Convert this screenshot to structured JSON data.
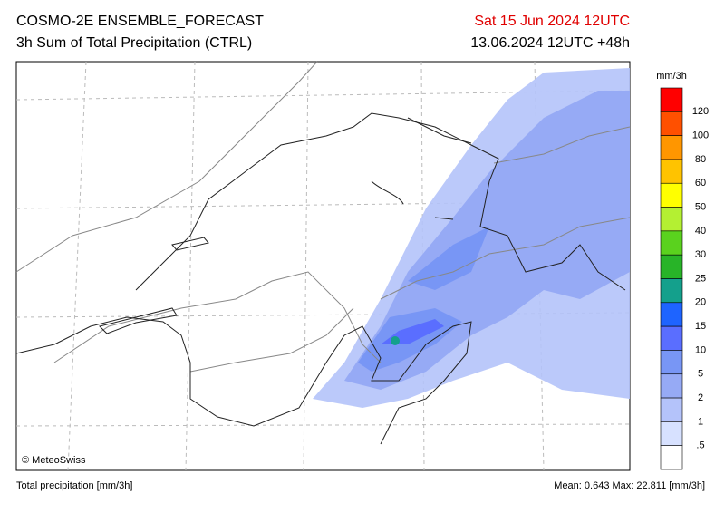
{
  "header": {
    "title": "COSMO-2E ENSEMBLE_FORECAST",
    "subtitle": "3h Sum of Total Precipitation (CTRL)",
    "valid_time": "Sat 15 Jun 2024 12UTC",
    "run_time": "13.06.2024 12UTC +48h"
  },
  "map": {
    "copyright": "© MeteoSwiss"
  },
  "colorbar": {
    "unit": "mm/3h",
    "colors": [
      "#ff0000",
      "#ff5000",
      "#ff9600",
      "#ffc300",
      "#ffff00",
      "#b4f032",
      "#5ad21e",
      "#28b428",
      "#14a08c",
      "#1e64ff",
      "#5a6eff",
      "#7896f5",
      "#96aaf5",
      "#b4c3fa",
      "#d7e1ff",
      "#ffffff"
    ],
    "labels": [
      "120",
      "100",
      "80",
      "60",
      "50",
      "40",
      "30",
      "25",
      "20",
      "15",
      "10",
      "5",
      "2",
      "1",
      ".5"
    ]
  },
  "footer": {
    "left": "Total precipitation [mm/3h]",
    "right": "Mean:  0.643 Max: 22.811 [mm/3h]"
  }
}
